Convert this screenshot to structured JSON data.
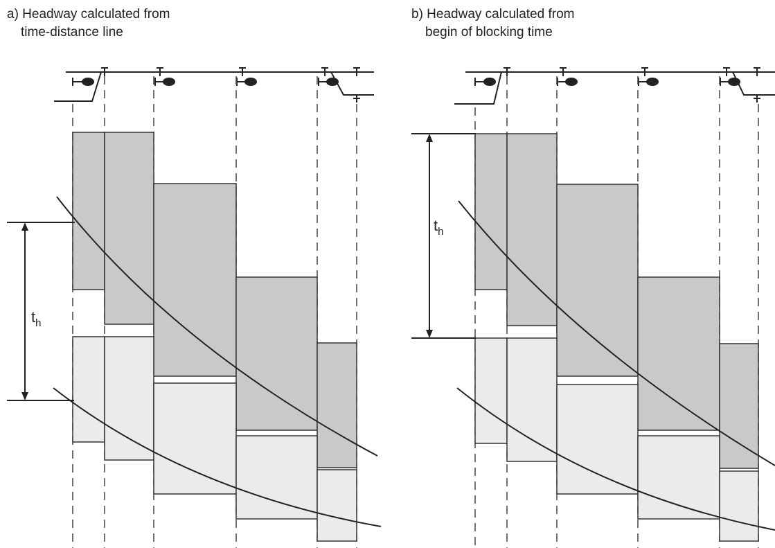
{
  "panels": [
    {
      "title_line1": "a) Headway calculated from",
      "title_line2": "time-distance line",
      "headway_label": "t",
      "headway_subscript": "h"
    },
    {
      "title_line1": "b) Headway calculated from",
      "title_line2": "begin of blocking time",
      "headway_label": "t",
      "headway_subscript": "h"
    }
  ],
  "colors": {
    "dark_block": "#c9c9c9",
    "light_block": "#ebebeb",
    "line": "#222222"
  }
}
